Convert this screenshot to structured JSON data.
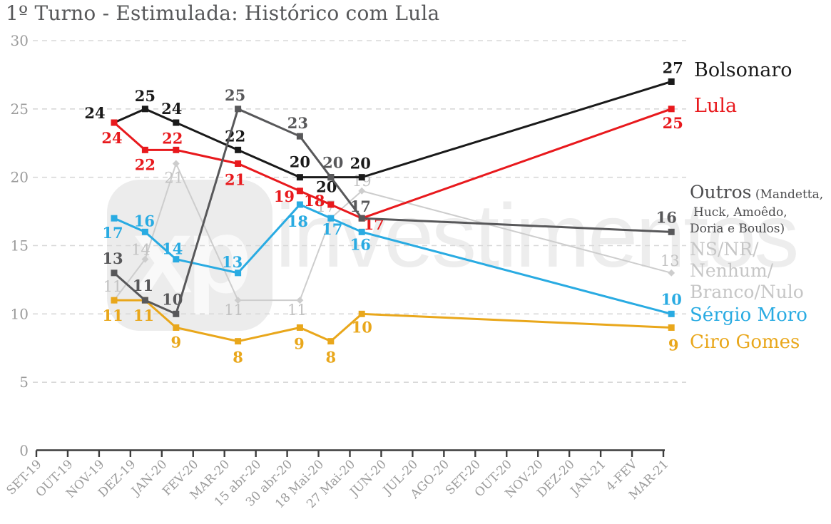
{
  "title": "1º Turno - Estimulada: Histórico com Lula",
  "watermark": {
    "logo": "xp",
    "text": "investimentos"
  },
  "legend": {
    "bolsonaro": "Bolsonaro",
    "lula": "Lula",
    "outros": "Outros",
    "outros_detail_1": " (Mandetta,",
    "outros_detail_2": "Huck, Amoêdo,",
    "outros_detail_3": "Doria e Boulos)",
    "nsnr_1": "NS/NR/",
    "nsnr_2": "Nenhum/",
    "nsnr_3": "Branco/Nulo",
    "moro": "Sérgio Moro",
    "ciro": "Ciro Gomes"
  },
  "colors": {
    "bolsonaro": "#1a1a1a",
    "lula": "#e8191d",
    "outros": "#58585a",
    "outros_text": "#4c4c4e",
    "nsnr": "#cdcdcd",
    "nsnr_text": "#c6c6c6",
    "moro": "#29abe2",
    "ciro": "#e9a71b",
    "axis_labels": "#9b9b9b",
    "gridline": "#d8d8d8",
    "title": "#57585a",
    "watermark": "#ededed"
  },
  "chart_data": {
    "type": "line",
    "title": "1º Turno - Estimulada: Histórico com Lula",
    "xlabel": "",
    "ylabel": "",
    "ylim": [
      0,
      30
    ],
    "y_ticks": [
      0,
      5,
      10,
      15,
      20,
      25,
      30
    ],
    "grid": "horizontal-dashed",
    "legend_position": "right",
    "categories": [
      "SET-19",
      "OUT-19",
      "NOV-19",
      "DEZ-19",
      "JAN-20",
      "FEV-20",
      "MAR-20",
      "15 abr-20",
      "30 abr-20",
      "18 Mai-20",
      "27 Mai-20",
      "JUN-20",
      "JUL-20",
      "AGO-20",
      "SET-20",
      "OUT-20",
      "NOV-20",
      "DEZ-20",
      "JAN-21",
      "4-FEV",
      "MAR-21"
    ],
    "series": [
      {
        "id": "nsnr",
        "name": "NS/NR/Nenhum/Branco/Nulo",
        "color": "#cdcdcd",
        "label_color": "#c2c2c2",
        "label_weight": "400",
        "label_size": 20,
        "marker": "diamond",
        "line_width": 2,
        "points": [
          {
            "c": 2,
            "v": 11,
            "dx": -2,
            "dy": -19
          },
          {
            "c": 3,
            "v": 14,
            "dx": -6,
            "dy": -13
          },
          {
            "c": 4,
            "v": 21,
            "dx": -3,
            "dy": 20
          },
          {
            "c": 6,
            "v": 11,
            "dx": -6,
            "dy": 14
          },
          {
            "c": 8,
            "v": 11,
            "dx": -4,
            "dy": 14
          },
          {
            "c": 9,
            "v": 17,
            "dx": -7,
            "dy": -16
          },
          {
            "c": 10,
            "v": 19,
            "dx": 0,
            "dy": -14
          },
          {
            "c": 20,
            "v": 13,
            "dx": -2,
            "dy": -17
          }
        ]
      },
      {
        "id": "ciro",
        "name": "Ciro Gomes",
        "color": "#e9a71b",
        "label_weight": "600",
        "label_size": 21,
        "marker": "square",
        "line_width": 3,
        "points": [
          {
            "c": 2,
            "v": 11,
            "dx": -2,
            "dy": 22
          },
          {
            "c": 3,
            "v": 11,
            "dx": -2,
            "dy": 22
          },
          {
            "c": 4,
            "v": 9,
            "dx": 0,
            "dy": 21
          },
          {
            "c": 6,
            "v": 8,
            "dx": 0,
            "dy": 23
          },
          {
            "c": 8,
            "v": 9,
            "dx": -1,
            "dy": 23
          },
          {
            "c": 9,
            "v": 8,
            "dx": 0,
            "dy": 23
          },
          {
            "c": 10,
            "v": 10,
            "dx": 0,
            "dy": 19
          },
          {
            "c": 20,
            "v": 9,
            "dx": 3,
            "dy": 25
          }
        ]
      },
      {
        "id": "moro",
        "name": "Sérgio Moro",
        "color": "#29abe2",
        "label_weight": "600",
        "label_size": 21,
        "marker": "square",
        "line_width": 3,
        "points": [
          {
            "c": 2,
            "v": 17,
            "dx": -2,
            "dy": 21
          },
          {
            "c": 3,
            "v": 16,
            "dx": -1,
            "dy": -15
          },
          {
            "c": 4,
            "v": 14,
            "dx": -5,
            "dy": -14
          },
          {
            "c": 6,
            "v": 13,
            "dx": -8,
            "dy": -15
          },
          {
            "c": 8,
            "v": 18,
            "dx": -3,
            "dy": 24
          },
          {
            "c": 9,
            "v": 17,
            "dx": 2,
            "dy": 16
          },
          {
            "c": 10,
            "v": 16,
            "dx": -2,
            "dy": 18
          },
          {
            "c": 20,
            "v": 10,
            "dx": 0,
            "dy": -20
          }
        ]
      },
      {
        "id": "bolsonaro",
        "name": "Bolsonaro",
        "color": "#1a1a1a",
        "label_weight": "600",
        "label_size": 21,
        "marker": "square",
        "line_width": 3,
        "points": [
          {
            "c": 2,
            "v": 24,
            "dx": -27,
            "dy": -13
          },
          {
            "c": 3,
            "v": 25,
            "dx": 0,
            "dy": -18
          },
          {
            "c": 4,
            "v": 24,
            "dx": -6,
            "dy": -19
          },
          {
            "c": 6,
            "v": 22,
            "dx": -4,
            "dy": -19
          },
          {
            "c": 8,
            "v": 20,
            "dx": 0,
            "dy": -21
          },
          {
            "c": 9,
            "v": 20,
            "dx": -6,
            "dy": 14
          },
          {
            "c": 10,
            "v": 20,
            "dx": -2,
            "dy": -19
          },
          {
            "c": 20,
            "v": 27,
            "dx": 2,
            "dy": -19
          }
        ]
      },
      {
        "id": "lula",
        "name": "Lula",
        "color": "#e8191d",
        "label_weight": "600",
        "label_size": 21,
        "marker": "square",
        "line_width": 3,
        "points": [
          {
            "c": 2,
            "v": 24,
            "dx": -3,
            "dy": 22
          },
          {
            "c": 3,
            "v": 22,
            "dx": 0,
            "dy": 21
          },
          {
            "c": 4,
            "v": 22,
            "dx": -5,
            "dy": -16
          },
          {
            "c": 6,
            "v": 21,
            "dx": -4,
            "dy": 23
          },
          {
            "c": 8,
            "v": 19,
            "dx": -22,
            "dy": 8
          },
          {
            "c": 9,
            "v": 18,
            "dx": -23,
            "dy": -5
          },
          {
            "c": 10,
            "v": 17,
            "dx": 17,
            "dy": 9
          },
          {
            "c": 20,
            "v": 25,
            "dx": 2,
            "dy": 20
          }
        ]
      },
      {
        "id": "outros",
        "name": "Outros (Mandetta, Huck, Amoêdo, Doria e Boulos)",
        "color": "#58585a",
        "label_weight": "600",
        "label_size": 21,
        "marker": "square",
        "line_width": 3,
        "points": [
          {
            "c": 2,
            "v": 13,
            "dx": -2,
            "dy": -20
          },
          {
            "c": 3,
            "v": 11,
            "dx": -3,
            "dy": -20
          },
          {
            "c": 4,
            "v": 10,
            "dx": -5,
            "dy": -20
          },
          {
            "c": 6,
            "v": 25,
            "dx": -4,
            "dy": -19
          },
          {
            "c": 8,
            "v": 23,
            "dx": -3,
            "dy": -18
          },
          {
            "c": 9,
            "v": 20,
            "dx": 3,
            "dy": -20
          },
          {
            "c": 10,
            "v": 17,
            "dx": -2,
            "dy": -16
          },
          {
            "c": 20,
            "v": 16,
            "dx": -7,
            "dy": -20
          }
        ]
      }
    ]
  }
}
